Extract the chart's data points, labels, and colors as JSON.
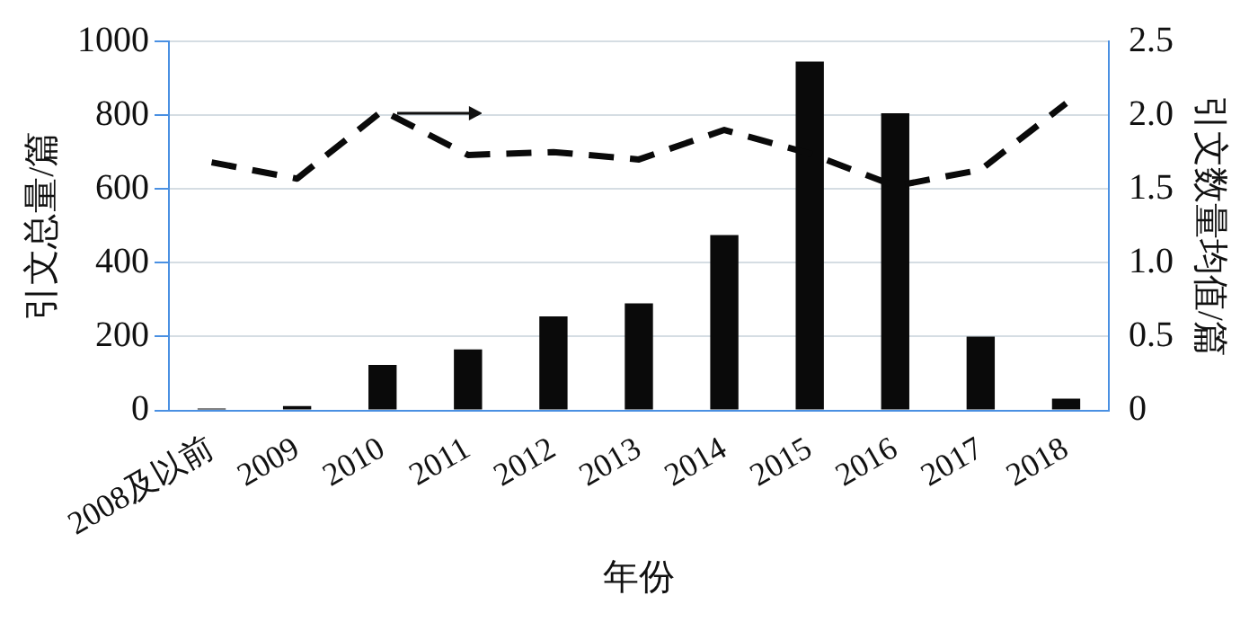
{
  "chart_data": {
    "type": "bar",
    "xlabel": "年份",
    "ylabel": "引文总量/篇",
    "y2label": "引文数量均值/篇",
    "categories": [
      "2008及以前",
      "2009",
      "2010",
      "2011",
      "2012",
      "2013",
      "2014",
      "2015",
      "2016",
      "2017",
      "2018"
    ],
    "series": [
      {
        "color": "#0a0a0a",
        "values": [
          5,
          12,
          123,
          165,
          255,
          290,
          475,
          945,
          805,
          200,
          32
        ]
      },
      {
        "type": "line",
        "axis": "y2",
        "color": "#0a0a0a",
        "line_style": "dashed",
        "values": [
          1.68,
          1.57,
          2.03,
          1.73,
          1.75,
          1.7,
          1.9,
          1.74,
          1.52,
          1.63,
          2.08
        ]
      }
    ],
    "ylim": [
      0,
      1000
    ],
    "yticks": [
      0,
      200,
      400,
      600,
      800,
      1000
    ],
    "y2lim": [
      0,
      2.5
    ],
    "y2ticks": [
      0,
      {
        "value": 0.5,
        "label": "0.5"
      },
      {
        "value": 1,
        "label": "1.0"
      },
      {
        "value": 1.5,
        "label": "1.5"
      },
      {
        "value": 2,
        "label": "2.0"
      },
      {
        "value": 2.5,
        "label": "2.5"
      }
    ],
    "grid": "y",
    "legend": false,
    "marker": "none"
  }
}
